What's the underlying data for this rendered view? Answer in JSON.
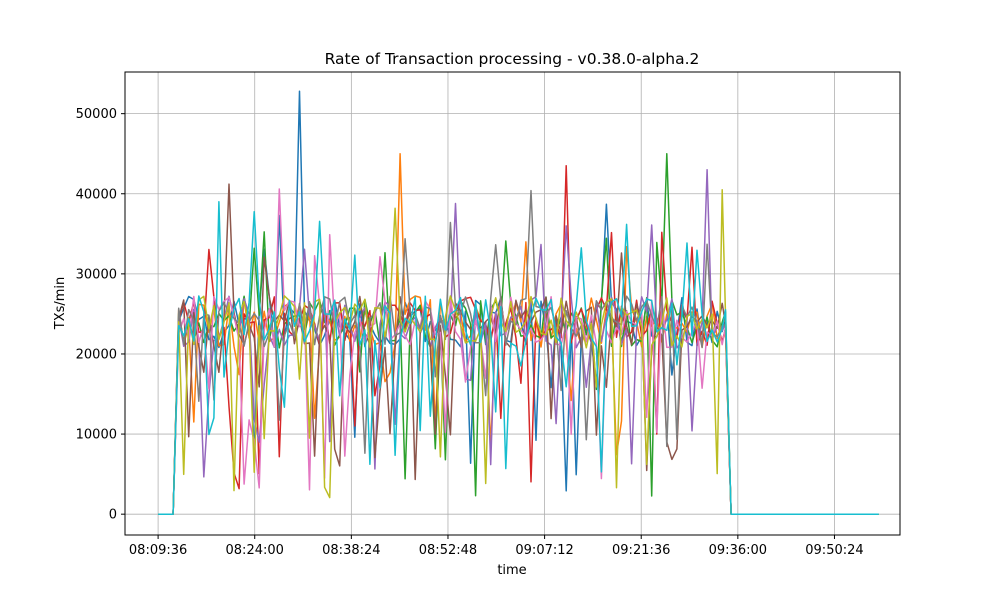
{
  "chart_data": {
    "type": "line",
    "title": "Rate of Transaction processing  -  v0.38.0-alpha.2",
    "xlabel": "time",
    "ylabel": "TXs/min",
    "grid": true,
    "legend": "none",
    "x_ticks": [
      "08:09:36",
      "08:24:00",
      "08:38:24",
      "08:52:48",
      "09:07:12",
      "09:21:36",
      "09:36:00",
      "09:50:24"
    ],
    "y_ticks": [
      0,
      10000,
      20000,
      30000,
      40000,
      50000
    ],
    "xlim": [
      "08:04:40",
      "10:00:10"
    ],
    "ylim": [
      -2600,
      55200
    ],
    "series_colors": [
      "#1f77b4",
      "#ff7f0e",
      "#2ca02c",
      "#d62728",
      "#9467bd",
      "#8c564b",
      "#e377c2",
      "#7f7f7f",
      "#bcbd22",
      "#17becf"
    ],
    "phases": [
      {
        "from": "08:09:36",
        "to": "08:11:50",
        "value": 0
      },
      {
        "from": "08:12:40",
        "to": "09:34:10",
        "value": 24000,
        "range": [
          0,
          52800
        ]
      },
      {
        "from": "09:35:00",
        "to": "09:57:00",
        "value": 0
      }
    ],
    "series": [
      {
        "peak": {
          "time": "08:30:25",
          "value": 52800
        }
      },
      {
        "peak": {
          "time": "08:45:00",
          "value": 45000
        }
      },
      {
        "peak": {
          "time": "09:25:00",
          "value": 45000
        }
      },
      {
        "peak": {
          "time": "09:10:00",
          "value": 43500
        }
      },
      {
        "peak": {
          "time": "09:31:00",
          "value": 43000
        }
      },
      {
        "peak": {
          "time": "08:20:00",
          "value": 41200
        }
      },
      {
        "peak": {
          "time": "08:27:40",
          "value": 40600
        }
      },
      {
        "peak": {
          "time": "09:04:30",
          "value": 40400
        }
      },
      {
        "peak": {
          "time": "09:33:00",
          "value": 40500
        }
      },
      {
        "peak": {
          "time": "08:18:30",
          "value": 39000
        }
      }
    ]
  }
}
